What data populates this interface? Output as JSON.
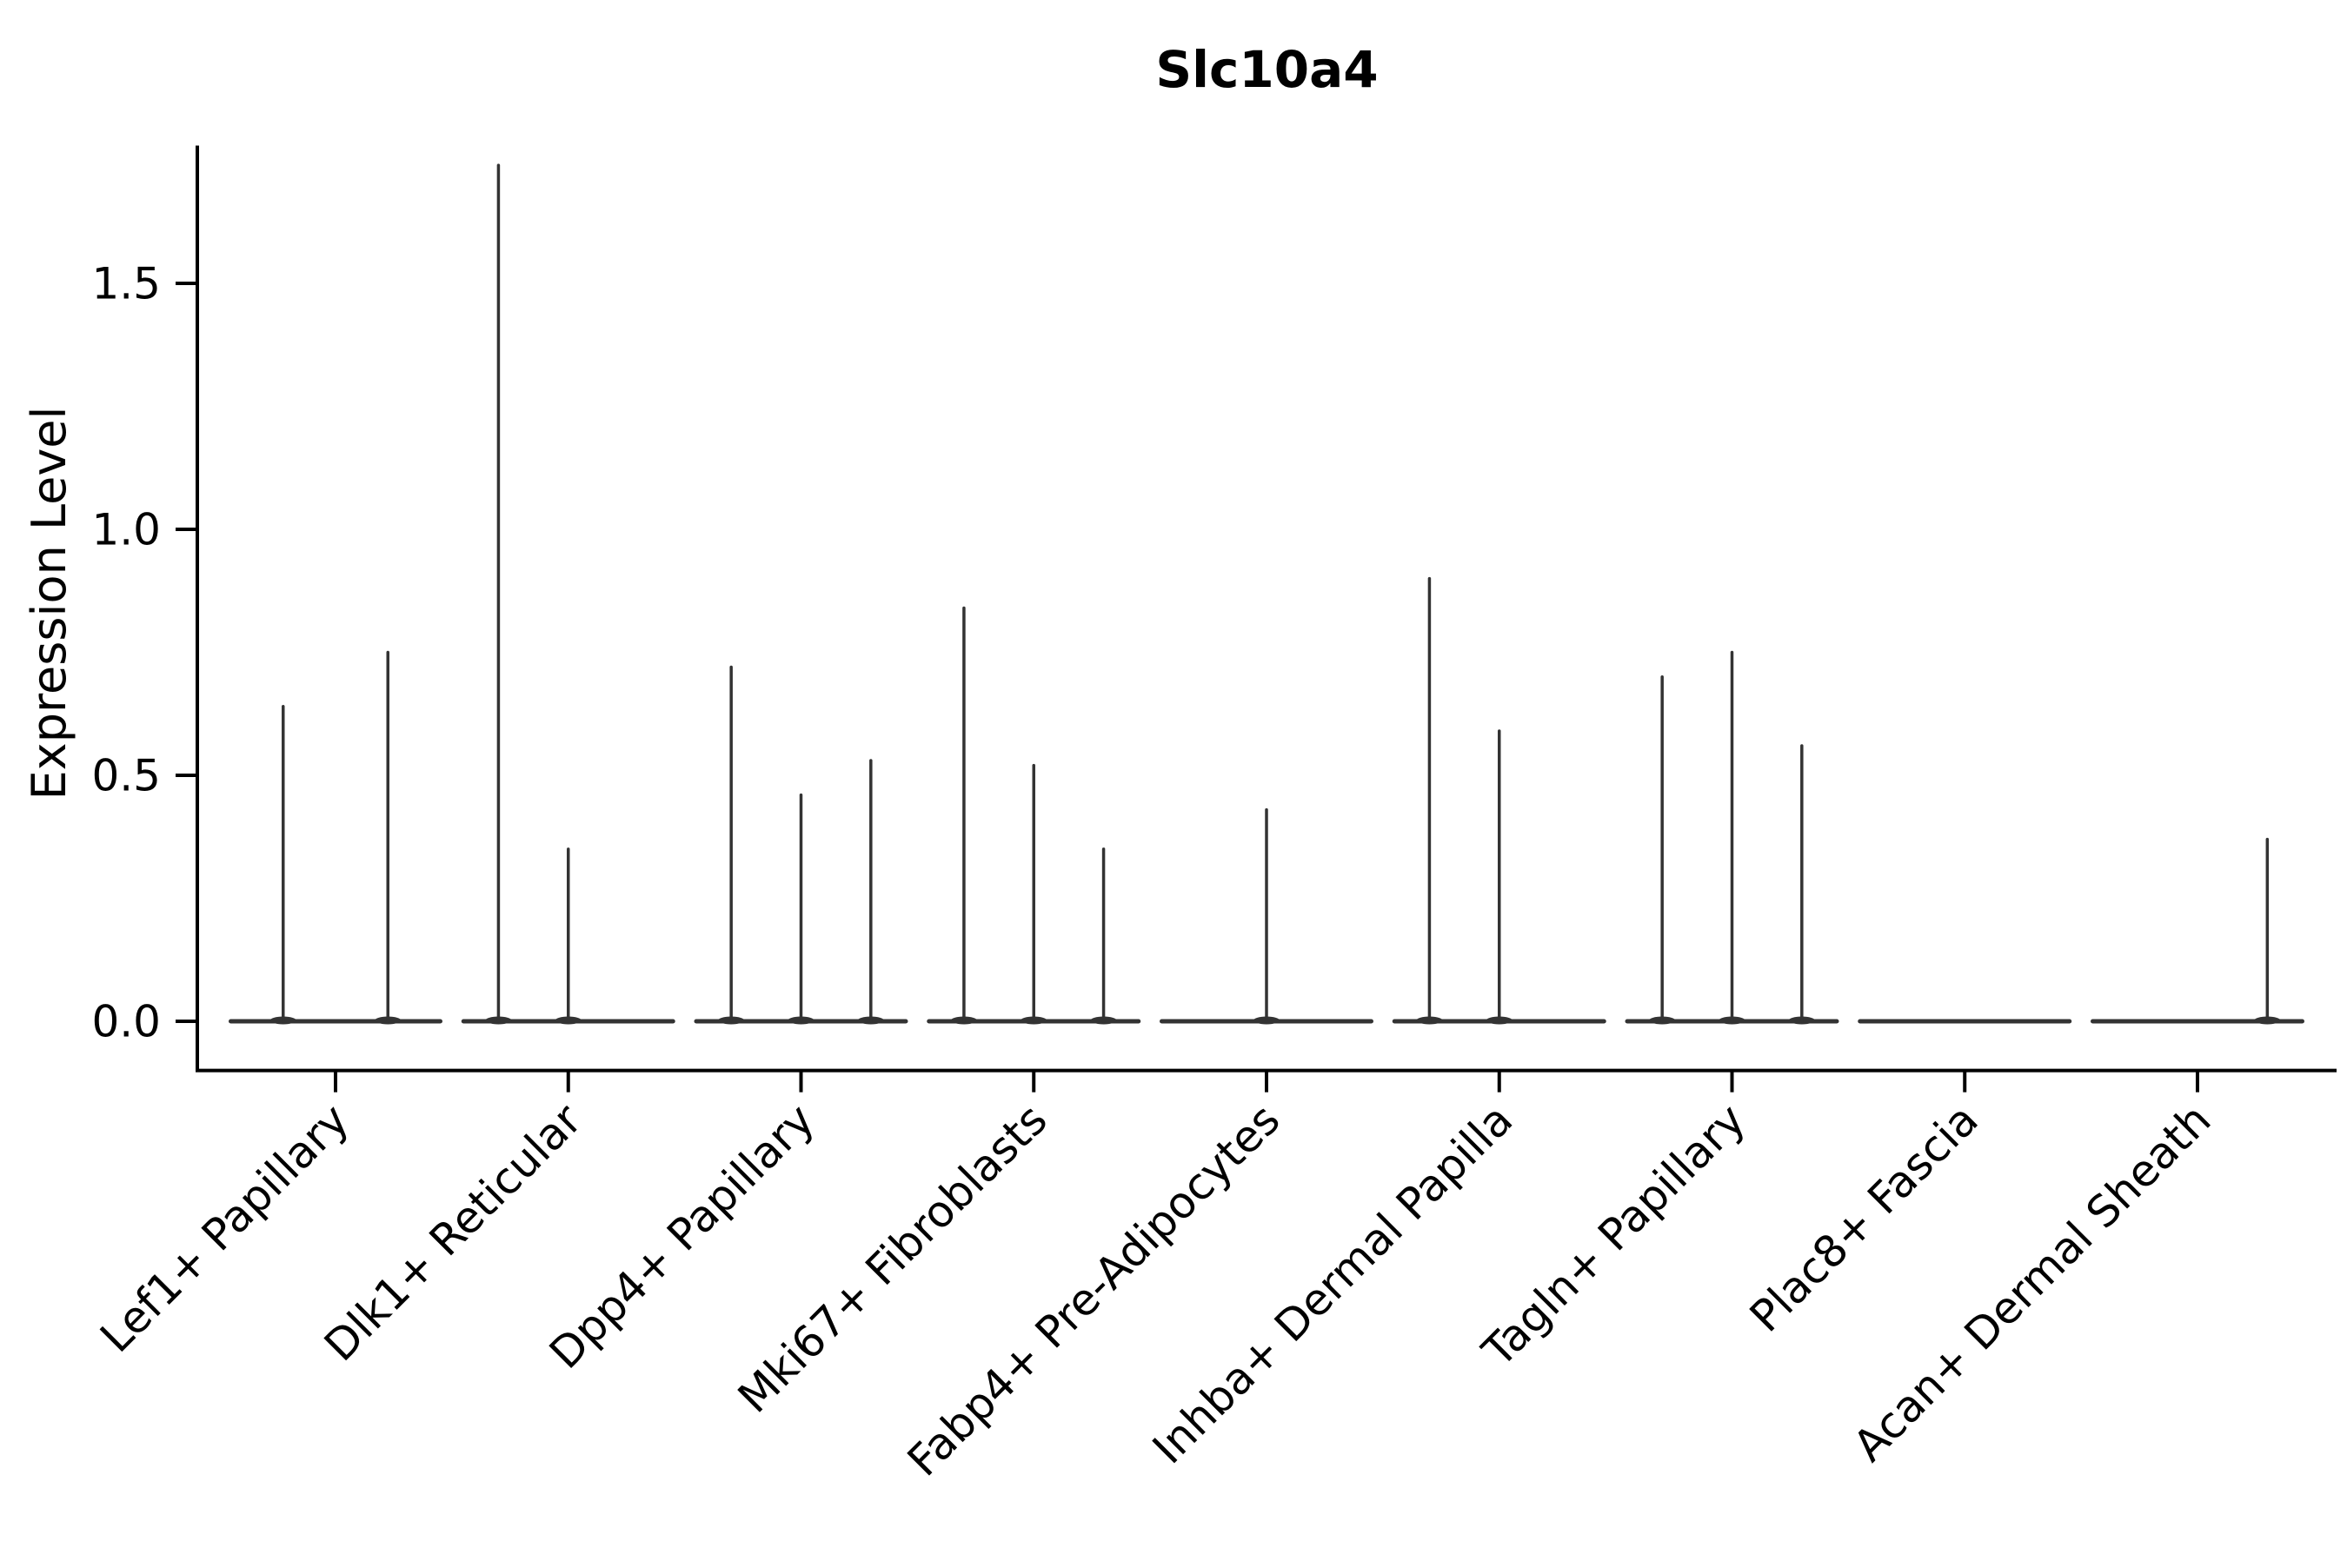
{
  "colors": {
    "background": "#ffffff",
    "violin_line": "#333333",
    "axis": "#000000",
    "text": "#000000"
  },
  "chart_data": {
    "type": "violin",
    "title": "Slc10a4",
    "xlabel": "",
    "ylabel": "Expression Level",
    "ylim": [
      -0.1,
      1.78
    ],
    "yticks": [
      0.0,
      0.5,
      1.0,
      1.5
    ],
    "ytick_labels": [
      "0.0",
      "0.5",
      "1.0",
      "1.5"
    ],
    "grid": false,
    "legend": false,
    "x_label_rotation_deg": 45,
    "group_width": 0.9,
    "baseline_value": 0.0,
    "categories": [
      "Lef1+ Papillary",
      "Dlk1+ Reticular",
      "Dpp4+ Papillary",
      "Mki67+ Fibroblasts",
      "Fabp4+ Pre-Adipocytes",
      "Inhba+ Dermal Papilla",
      "Tagln+ Papillary",
      "Plac8+ Fascia",
      "Acan+ Dermal Sheath"
    ],
    "violins": [
      {
        "category": "Lef1+ Papillary",
        "spikes": [
          {
            "offset": -0.225,
            "max": 0.64
          },
          {
            "offset": 0.225,
            "max": 0.75
          }
        ]
      },
      {
        "category": "Dlk1+ Reticular",
        "spikes": [
          {
            "offset": -0.3,
            "max": 1.74
          },
          {
            "offset": 0.0,
            "max": 0.35
          }
        ]
      },
      {
        "category": "Dpp4+ Papillary",
        "spikes": [
          {
            "offset": -0.3,
            "max": 0.72
          },
          {
            "offset": 0.0,
            "max": 0.46
          },
          {
            "offset": 0.3,
            "max": 0.53
          }
        ]
      },
      {
        "category": "Mki67+ Fibroblasts",
        "spikes": [
          {
            "offset": -0.3,
            "max": 0.84
          },
          {
            "offset": 0.0,
            "max": 0.52
          },
          {
            "offset": 0.3,
            "max": 0.35
          }
        ]
      },
      {
        "category": "Fabp4+ Pre-Adipocytes",
        "spikes": [
          {
            "offset": 0.0,
            "max": 0.43
          }
        ]
      },
      {
        "category": "Inhba+ Dermal Papilla",
        "spikes": [
          {
            "offset": -0.3,
            "max": 0.9
          },
          {
            "offset": 0.0,
            "max": 0.59
          }
        ]
      },
      {
        "category": "Tagln+ Papillary",
        "spikes": [
          {
            "offset": -0.3,
            "max": 0.7
          },
          {
            "offset": 0.0,
            "max": 0.75
          },
          {
            "offset": 0.3,
            "max": 0.56
          }
        ]
      },
      {
        "category": "Plac8+ Fascia",
        "spikes": []
      },
      {
        "category": "Acan+ Dermal Sheath",
        "spikes": [
          {
            "offset": 0.3,
            "max": 0.37
          }
        ]
      }
    ]
  }
}
